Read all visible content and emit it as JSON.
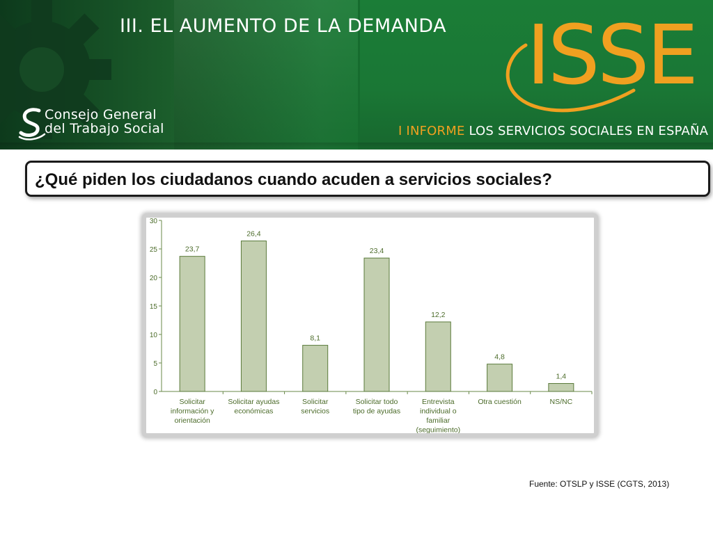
{
  "header": {
    "section_title": "III. EL AUMENTO DE LA DEMANDA",
    "org_name_line1": "Consejo General",
    "org_name_line2": "del Trabajo Social",
    "brand": "ISSE",
    "report_highlight": "I INFORME",
    "report_rest": "LOS SERVICIOS SOCIALES EN ESPAÑA",
    "colors": {
      "green_dark": "#0d3a1c",
      "green": "#1b7d37",
      "orange": "#f0a020"
    }
  },
  "question": "¿Qué piden los ciudadanos cuando acuden a servicios sociales?",
  "chart_data": {
    "type": "bar",
    "categories": [
      [
        "Solicitar",
        "información y",
        "orientación"
      ],
      [
        "Solicitar ayudas",
        "económicas"
      ],
      [
        "Solicitar",
        "servicios"
      ],
      [
        "Solicitar todo",
        "tipo de ayudas"
      ],
      [
        "Entrevista",
        "individual o",
        "familiar",
        "(seguimiento)"
      ],
      [
        "Otra cuestión"
      ],
      [
        "NS/NC"
      ]
    ],
    "values": [
      23.7,
      26.4,
      8.1,
      23.4,
      12.2,
      4.8,
      1.4
    ],
    "value_labels": [
      "23,7",
      "26,4",
      "8,1",
      "23,4",
      "12,2",
      "4,8",
      "1,4"
    ],
    "yticks": [
      "0",
      "5",
      "10",
      "15",
      "20",
      "25",
      "30"
    ],
    "ylim": [
      0,
      30
    ],
    "grid": false,
    "bar_color": "#c3cfb0",
    "bar_edge": "#5a7a3a",
    "text_color": "#4a6a28"
  },
  "source": "Fuente: OTSLP y ISSE (CGTS, 2013)"
}
